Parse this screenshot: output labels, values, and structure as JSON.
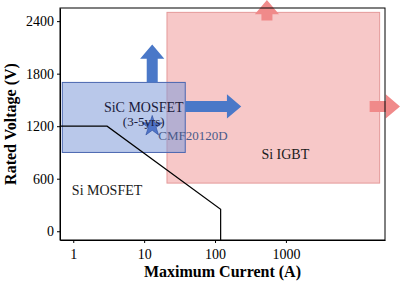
{
  "chart_data": {
    "type": "region",
    "x_label": "Maximum Current (A)",
    "y_label": "Rated Voltage (V)",
    "log": "x",
    "grid": false,
    "xlim": [
      0.65,
      25000
    ],
    "xticks": [
      1,
      10,
      100,
      1000
    ],
    "ylim": [
      -100,
      2550
    ],
    "yticks": [
      0,
      600,
      1200,
      1800,
      2400
    ],
    "series": [
      {
        "name": "Si IGBT",
        "type": "rect",
        "color": "#f7c8c8",
        "x": [
          21,
          21000
        ],
        "values": [
          550,
          2500
        ]
      },
      {
        "name": "SiC MOSFET",
        "type": "rect",
        "color": "#7f9bd8",
        "x": [
          0.7,
          38
        ],
        "values": [
          900,
          1700
        ]
      },
      {
        "name": "Si MOSFET",
        "type": "line",
        "color": "#000000",
        "x": [
          0.65,
          3,
          120,
          120
        ],
        "values": [
          1200,
          1200,
          250,
          -100
        ]
      },
      {
        "name": "CMF20120D",
        "type": "scatter",
        "marker": "star",
        "color": "#4f74c8",
        "x": [
          13
        ],
        "values": [
          1200
        ]
      }
    ],
    "annotations": [
      "(3-5yrs)"
    ]
  }
}
